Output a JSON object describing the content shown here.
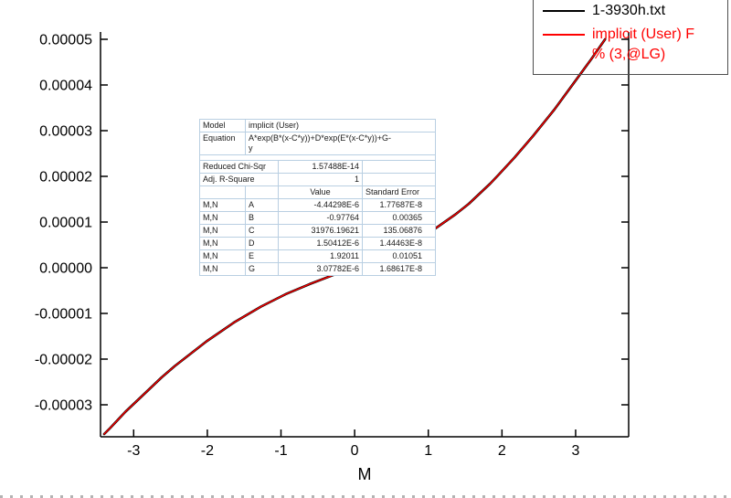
{
  "chart_data": {
    "type": "line",
    "title": "",
    "xlabel": "M",
    "ylabel": "",
    "xlim": [
      -3.45,
      3.72
    ],
    "ylim": [
      -3.7e-05,
      5.16e-05
    ],
    "grid": false,
    "legend_position": "top-right",
    "x_ticks": [
      {
        "value": -3,
        "label": "-3"
      },
      {
        "value": -2,
        "label": "-2"
      },
      {
        "value": -1,
        "label": "-1"
      },
      {
        "value": 0,
        "label": "0"
      },
      {
        "value": 1,
        "label": "1"
      },
      {
        "value": 2,
        "label": "2"
      },
      {
        "value": 3,
        "label": "3"
      }
    ],
    "y_ticks": [
      {
        "value": 5e-05,
        "label": "0.00005"
      },
      {
        "value": 4e-05,
        "label": "0.00004"
      },
      {
        "value": 3e-05,
        "label": "0.00003"
      },
      {
        "value": 2e-05,
        "label": "0.00002"
      },
      {
        "value": 1e-05,
        "label": "0.00001"
      },
      {
        "value": 0,
        "label": "0.00000"
      },
      {
        "value": -1e-05,
        "label": "-0.00001"
      },
      {
        "value": -2e-05,
        "label": "-0.00002"
      },
      {
        "value": -3e-05,
        "label": "-0.00003"
      }
    ],
    "series": [
      {
        "id": "data-curve",
        "name": "1-3930h.txt",
        "color": "#000000",
        "width": 2.6,
        "x": [
          -3.4,
          -3.32,
          -3.11,
          -2.9,
          -2.62,
          -2.44,
          -2.01,
          -1.63,
          -1.27,
          -0.94,
          -0.61,
          -0.3,
          0.0,
          0.31,
          0.64,
          0.98,
          1.37,
          1.55,
          1.84,
          1.94,
          2.17,
          2.42,
          2.71,
          3.21,
          3.4
        ],
        "y": [
          -3.64e-05,
          -3.51e-05,
          -3.15e-05,
          -2.83e-05,
          -2.4e-05,
          -2.15e-05,
          -1.61e-05,
          -1.19e-05,
          -8.51e-06,
          -5.81e-06,
          -3.59e-06,
          -1.66e-06,
          1.4e-07,
          2.03e-06,
          4.28e-06,
          7.29e-06,
          1.17e-05,
          1.4e-05,
          1.84e-05,
          2.01e-05,
          2.41e-05,
          2.88e-05,
          3.46e-05,
          4.56e-05,
          5e-05
        ]
      },
      {
        "id": "fit-curve",
        "name": "implicit (User) Fit",
        "color": "#ff0000",
        "width": 1.4,
        "x": [
          -3.4,
          -3.32,
          -3.11,
          -2.9,
          -2.62,
          -2.44,
          -2.01,
          -1.63,
          -1.27,
          -0.94,
          -0.61,
          -0.3,
          0.0,
          0.31,
          0.64,
          0.98,
          1.37,
          1.55,
          1.84,
          1.94,
          2.17,
          2.42,
          2.71,
          3.21,
          3.4
        ],
        "y": [
          -3.64e-05,
          -3.51e-05,
          -3.15e-05,
          -2.83e-05,
          -2.4e-05,
          -2.15e-05,
          -1.61e-05,
          -1.19e-05,
          -8.51e-06,
          -5.81e-06,
          -3.59e-06,
          -1.66e-06,
          1.4e-07,
          2.03e-06,
          4.28e-06,
          7.29e-06,
          1.17e-05,
          1.4e-05,
          1.84e-05,
          2.01e-05,
          2.41e-05,
          2.88e-05,
          3.46e-05,
          4.56e-05,
          5e-05
        ]
      }
    ]
  },
  "legend": {
    "items": [
      {
        "label": "1-3930h.txt",
        "color": "#000000"
      },
      {
        "label": "implicit (User) F",
        "label2": "% (3,@LG)",
        "color": "#ff0000"
      }
    ]
  },
  "fit_table": {
    "model_label": "Model",
    "model_value": "implicit (User)",
    "equation_label": "Equation",
    "equation_value": "A*exp(B*(x-C*y))+D*exp(E*(x-C*y))+G-y",
    "stats": [
      {
        "label": "Reduced Chi-Sqr",
        "value": "1.57488E-14"
      },
      {
        "label": "Adj. R-Square",
        "value": "1"
      }
    ],
    "header": [
      "",
      "",
      "Value",
      "Standard Error"
    ],
    "parameters": [
      {
        "group": "M,N",
        "name": "A",
        "value": "-4.44298E-6",
        "std_error": "1.77687E-8"
      },
      {
        "group": "M,N",
        "name": "B",
        "value": "-0.97764",
        "std_error": "0.00365"
      },
      {
        "group": "M,N",
        "name": "C",
        "value": "31976.19621",
        "std_error": "135.06876"
      },
      {
        "group": "M,N",
        "name": "D",
        "value": "1.50412E-6",
        "std_error": "1.44463E-8"
      },
      {
        "group": "M,N",
        "name": "E",
        "value": "1.92011",
        "std_error": "0.01051"
      },
      {
        "group": "M,N",
        "name": "G",
        "value": "3.07782E-6",
        "std_error": "1.68617E-8"
      }
    ]
  }
}
